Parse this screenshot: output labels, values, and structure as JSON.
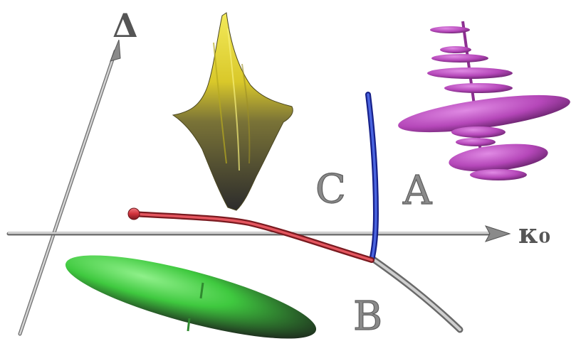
{
  "axes": {
    "vertical_label": "Δ",
    "horizontal_label": "κ₀"
  },
  "regions": {
    "a": "A",
    "b": "B",
    "c": "C"
  },
  "colors": {
    "background": "#ffffff",
    "axis": "#9a9a9a",
    "curve_red": "#d0313b",
    "curve_blue": "#2f45c8",
    "curve_gray": "#a9a9a9",
    "surface_yellow": "#e6d52c",
    "disc_green": "#3fc93f",
    "spiral_magenta": "#b547b9"
  },
  "icons": {
    "surface_plot": "yellow-surface-plot",
    "disc": "green-disc",
    "stacked_discs": "magenta-stacked-discs"
  }
}
